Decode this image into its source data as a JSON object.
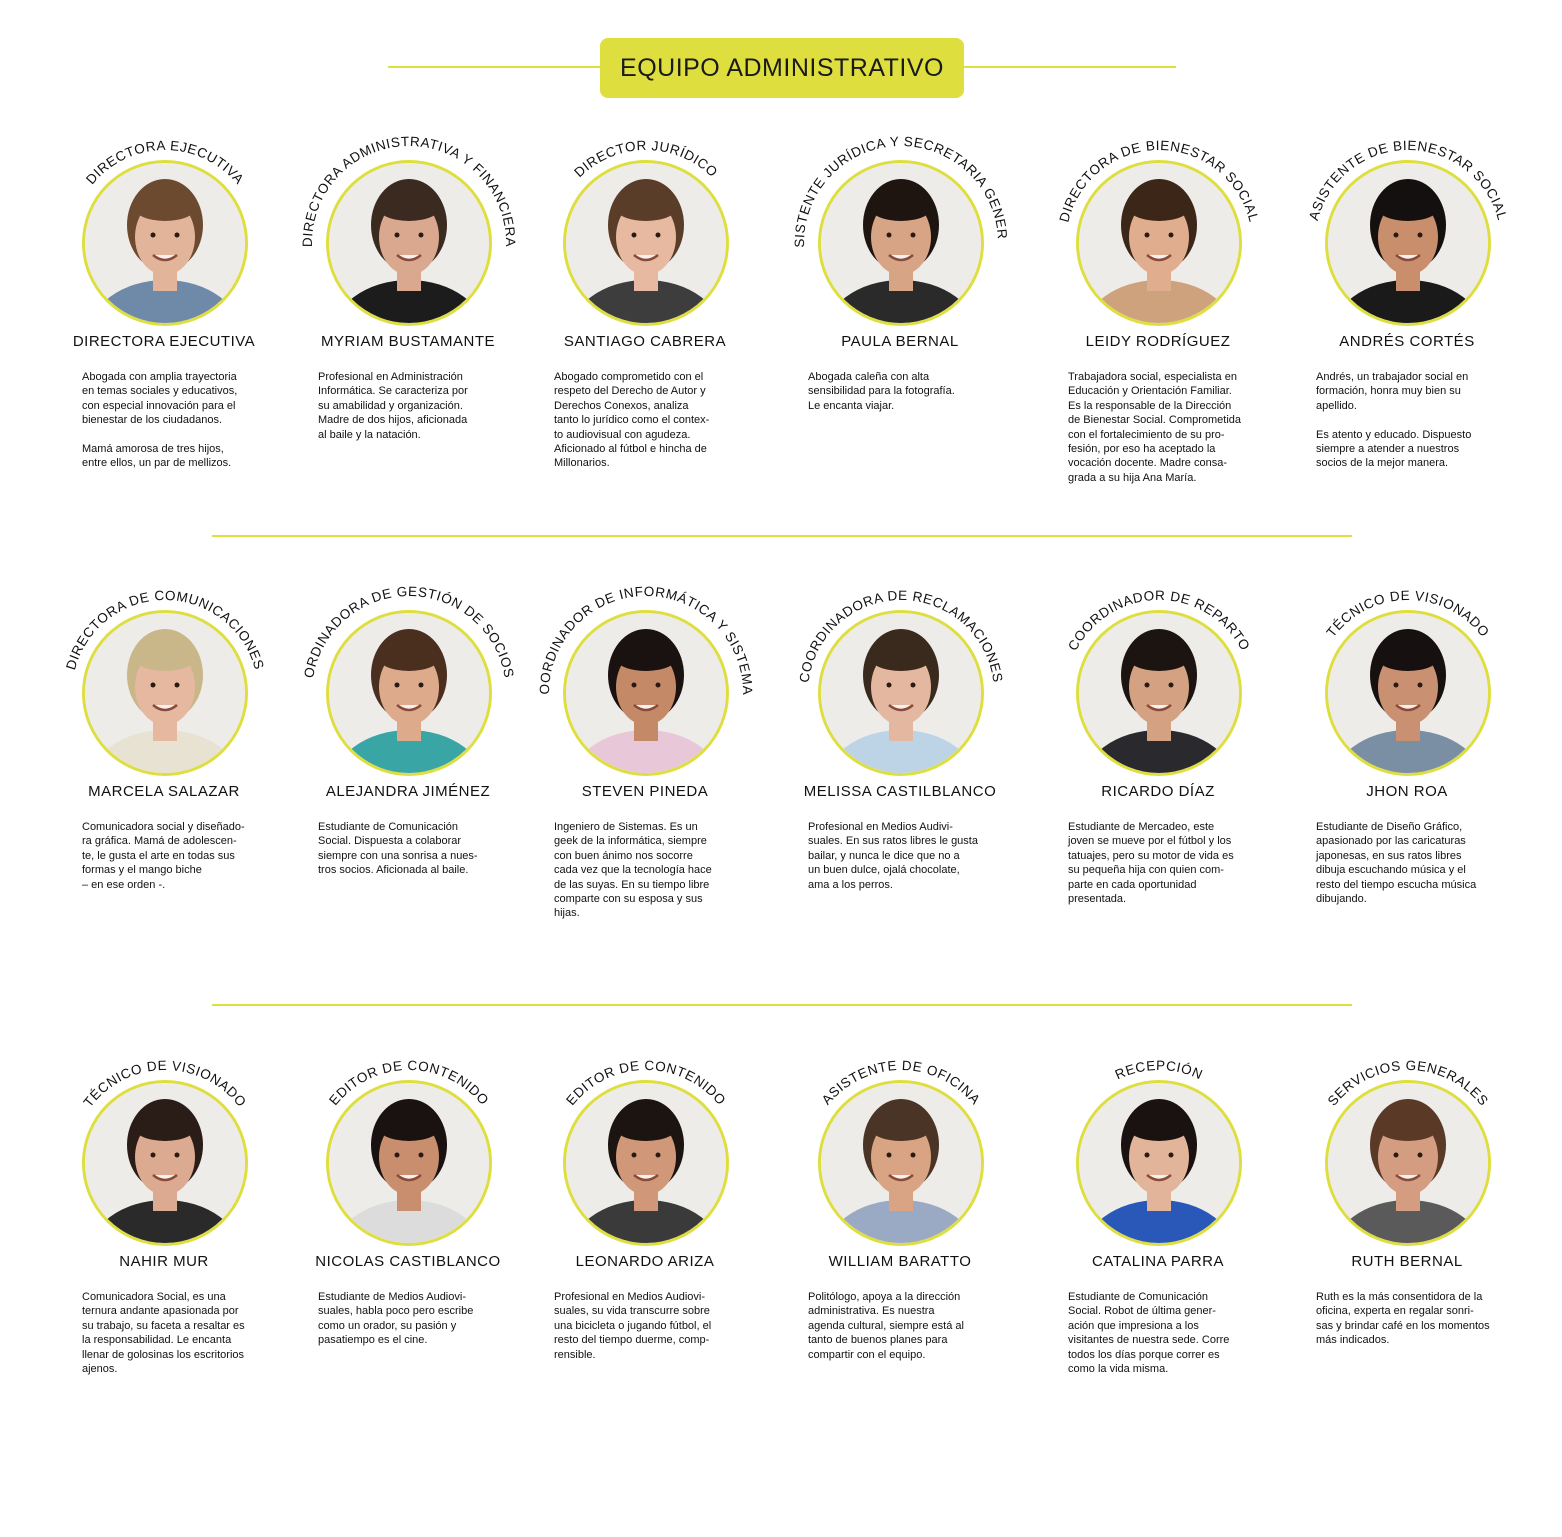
{
  "header": {
    "title": "EQUIPO ADMINISTRATIVO"
  },
  "colors": {
    "accent": "#dedf3e"
  },
  "rows": [
    [
      {
        "role": "DIRECTORA EJECUTIVA",
        "name": "DIRECTORA EJECUTIVA",
        "bio": "Abogada con amplia trayectoria\nen temas sociales y educativos,\ncon especial innovación para el\nbienestar de los ciudadanos.\n\nMamá amorosa de tres hijos,\nentre ellos, un par de mellizos.",
        "skin": "#e2b49a",
        "hair": "#6b4a30",
        "shirt": "#6f89a8"
      },
      {
        "role": "DIRECTORA ADMINISTRATIVA Y FINANCIERA",
        "name": "MYRIAM BUSTAMANTE",
        "bio": "Profesional en Administración\nInformática. Se caracteriza por\nsu amabilidad y organización.\nMadre de dos hijos, aficionada\nal baile y la natación.",
        "skin": "#d9a88e",
        "hair": "#3a2a20",
        "shirt": "#1c1c1c"
      },
      {
        "role": "DIRECTOR JURÍDICO",
        "name": "SANTIAGO CABRERA",
        "bio": "Abogado comprometido con el\nrespeto del Derecho de Autor y\nDerechos Conexos, analiza\ntanto lo jurídico como el contex-\nto audiovisual con agudeza.\nAficionado al fútbol e hincha de\nMillonarios.",
        "skin": "#e6b9a0",
        "hair": "#5a3d28",
        "shirt": "#3d3d3d"
      },
      {
        "role": "ASISTENTE JURÍDICA Y SECRETARIA GENERAL",
        "name": "PAULA  BERNAL",
        "bio": "Abogada caleña con alta\nsensibilidad para la fotografía.\nLe encanta viajar.",
        "skin": "#d8a486",
        "hair": "#1e1410",
        "shirt": "#2a2a2a"
      },
      {
        "role": "DIRECTORA DE BIENESTAR SOCIAL",
        "name": "LEIDY RODRÍGUEZ",
        "bio": "Trabajadora social, especialista en\nEducación y Orientación Familiar.\nEs la responsable de la Dirección\nde Bienestar Social. Comprometida\ncon el fortalecimiento de su pro-\nfesión, por eso ha aceptado la\nvocación docente. Madre consa-\ngrada a su hija Ana María.",
        "skin": "#e0ad8f",
        "hair": "#3b2618",
        "shirt": "#cfa27e"
      },
      {
        "role": "ASISTENTE DE BIENESTAR SOCIAL",
        "name": "ANDRÉS CORTÉS",
        "bio": "Andrés, un trabajador social en\nformación, honra muy bien su\napellido.\n\nEs atento y educado. Dispuesto\nsiempre a atender a nuestros\nsocios de la mejor manera.",
        "skin": "#c98e6c",
        "hair": "#141010",
        "shirt": "#1a1a1a"
      }
    ],
    [
      {
        "role": "DIRECTORA DE COMUNICACIONES",
        "name": "MARCELA SALAZAR",
        "bio": "Comunicadora social y diseñado-\nra gráfica. Mamá de adolescen-\nte, le gusta el arte en todas sus\nformas y el mango biche\n– en ese orden -.",
        "skin": "#e6b8a0",
        "hair": "#c9b78a",
        "shirt": "#e8e2d2"
      },
      {
        "role": "ORDINADORA DE GESTIÓN DE SOCIOS",
        "name": "ALEJANDRA JIMÉNEZ",
        "bio": "Estudiante de Comunicación\nSocial. Dispuesta a colaborar\nsiempre con una sonrisa a nues-\ntros socios. Aficionada al baile.",
        "skin": "#deaa8c",
        "hair": "#4a2e1e",
        "shirt": "#3aa5a5"
      },
      {
        "role": "COORDINADOR DE INFORMÁTICA Y SISTEMAS",
        "name": "STEVEN PINEDA",
        "bio": "Ingeniero de Sistemas. Es un\ngeek de la informática, siempre\ncon buen ánimo nos socorre\ncada vez que la tecnología hace\nde las suyas. En su tiempo libre\ncomparte con su esposa y sus\nhijas.",
        "skin": "#c48a68",
        "hair": "#1a1210",
        "shirt": "#e8c8d8"
      },
      {
        "role": "COORDINADORA DE RECLAMACIONES",
        "name": "MELISSA CASTILBLANCO",
        "bio": "Profesional en Medios Audivi-\nsuales. En sus ratos libres le gusta\nbailar, y nunca le dice que no a\nun buen dulce, ojalá chocolate,\nama a los perros.",
        "skin": "#e4b8a0",
        "hair": "#3a2a1e",
        "shirt": "#bcd4e6"
      },
      {
        "role": "COORDINADOR DE REPARTO",
        "name": "RICARDO DÍAZ",
        "bio": "Estudiante de Mercadeo, este\njoven se mueve por el fútbol y los\ntatuajes, pero su motor de vida es\nsu pequeña hija con quien com-\nparte en cada oportunidad\npresentada.",
        "skin": "#d4a282",
        "hair": "#1c1410",
        "shirt": "#2a2a2e"
      },
      {
        "role": "TÉCNICO DE VISIONADO",
        "name": "JHON ROA",
        "bio": "Estudiante de Diseño Gráfico,\napasionado por las caricaturas\njaponesas, en sus ratos libres\ndibuja escuchando música y el\nresto del tiempo escucha música\ndibujando.",
        "skin": "#c99072",
        "hair": "#161010",
        "shirt": "#7a8ea4"
      }
    ],
    [
      {
        "role": "TÉCNICO DE VISIONADO",
        "name": "NAHIR MUR",
        "bio": "Comunicadora Social, es una\nternura andante apasionada por\nsu trabajo, su faceta a resaltar es\nla responsabilidad. Le encanta\nllenar de golosinas los escritorios\najenos.",
        "skin": "#dcaa90",
        "hair": "#2a1c16",
        "shirt": "#2a2a2a"
      },
      {
        "role": "EDITOR DE CONTENIDO",
        "name": "NICOLAS CASTIBLANCO",
        "bio": "Estudiante de Medios Audiovi-\nsuales, habla poco pero escribe\ncomo un orador, su pasión y\npasatiempo es el cine.",
        "skin": "#c88e6e",
        "hair": "#1a1210",
        "shirt": "#dcdcdc"
      },
      {
        "role": "EDITOR DE CONTENIDO",
        "name": "LEONARDO ARIZA",
        "bio": "Profesional en Medios Audiovi-\nsuales, su vida transcurre sobre\nuna bicicleta o jugando fútbol, el\nresto del tiempo duerme, comp-\nrensible.",
        "skin": "#d09878",
        "hair": "#1c1410",
        "shirt": "#3a3a3a"
      },
      {
        "role": "ASISTENTE DE OFICINA",
        "name": "WILLIAM BARATTO",
        "bio": "Politólogo, apoya a la dirección\nadministrativa.  Es nuestra\nagenda cultural, siempre está al\ntanto de buenos planes para\ncompartir con el equipo.",
        "skin": "#d8a484",
        "hair": "#4a3426",
        "shirt": "#9aaac4"
      },
      {
        "role": "RECEPCIÓN",
        "name": "CATALINA PARRA",
        "bio": "Estudiante de Comunicación\nSocial. Robot de última gener-\nación que impresiona a los\nvisitantes de nuestra sede. Corre\ntodos los días porque correr es\ncomo la vida misma.",
        "skin": "#e2b49a",
        "hair": "#1a1210",
        "shirt": "#2a58b8"
      },
      {
        "role": "SERVICIOS GENERALES",
        "name": "RUTH BERNAL",
        "bio": "Ruth es la más consentidora de la\noficina, experta en regalar sonri-\nsas y brindar café en los momentos\nmás indicados.",
        "skin": "#d49c80",
        "hair": "#5a3a26",
        "shirt": "#5a5a5a"
      }
    ]
  ]
}
